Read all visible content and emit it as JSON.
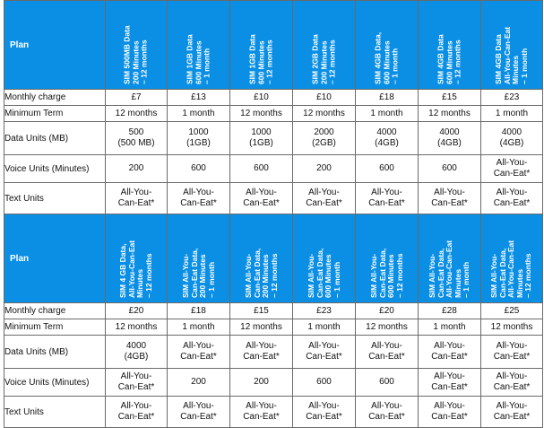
{
  "row_labels": {
    "plan": "Plan",
    "monthly": "Monthly charge",
    "term": "Minimum Term",
    "data": "Data Units (MB)",
    "voice": "Voice Units (Minutes)",
    "text": "Text Units"
  },
  "table1": {
    "plans": [
      "SIM 500MB Data\n200 Minutes\n– 12 months",
      "SIM 1GB Data\n600 Minutes\n– 1 month",
      "SIM 1GB Data\n600 Minutes\n– 12 months",
      "SIM 2GB Data\n200 Minutes\n– 12 months",
      "SIM 4GB Data,\n600 Minutes\n– 1 month",
      "SIM 4GB Data\n600 Minutes\n– 12 months",
      "SIM 4GB Data\nAll-You-Can-Eat\nMinutes\n– 1 month"
    ],
    "monthly": [
      "£7",
      "£13",
      "£10",
      "£10",
      "£18",
      "£15",
      "£23"
    ],
    "term": [
      "12 months",
      "1 month",
      "12 months",
      "12 months",
      "1 month",
      "12 months",
      "1 month"
    ],
    "data": [
      "500\n(500 MB)",
      "1000\n(1GB)",
      "1000\n(1GB)",
      "2000\n(2GB)",
      "4000\n(4GB)",
      "4000\n(4GB)",
      "4000\n(4GB)"
    ],
    "voice": [
      "200",
      "600",
      "600",
      "200",
      "600",
      "600",
      "All-You-\nCan-Eat*"
    ],
    "text": [
      "All-You-\nCan-Eat*",
      "All-You-\nCan-Eat*",
      "All-You-\nCan-Eat*",
      "All-You-\nCan-Eat*",
      "All-You-\nCan-Eat*",
      "All-You-\nCan-Eat*",
      "All-You-\nCan-Eat*"
    ]
  },
  "table2": {
    "plans": [
      "SIM 4 GB Data,\nAll-You-Can-Eat\nMinutes\n– 12 months",
      "SIM All-You-\nCan-Eat Data,\n200 Minutes\n– 1 month",
      "SIM All-You-\nCan-Eat Data,\n200 Minutes\n– 12 months",
      "SIM All-You-\nCan-Eat Data,\n600 Minutes\n– 1 month",
      "SIM All-You-\nCan-Eat Data,\n600 Minutes\n– 12 months",
      "SIM All-You-\nCan-Eat Data,\nAll-You-Can-Eat\nMinutes\n– 1 month",
      "SIM All-You-\nCan-Eat Data,\nAll-You-Can-Eat\nMinutes\n– 12 months"
    ],
    "monthly": [
      "£20",
      "£18",
      "£15",
      "£23",
      "£20",
      "£28",
      "£25"
    ],
    "term": [
      "12 months",
      "1 month",
      "12 months",
      "1 month",
      "12 months",
      "1 month",
      "12 months"
    ],
    "data": [
      "4000\n(4GB)",
      "All-You-\nCan-Eat*",
      "All-You-\nCan-Eat*",
      "All-You-\nCan-Eat*",
      "All-You-\nCan-Eat*",
      "All-You-\nCan-Eat*",
      "All-You-\nCan-Eat*"
    ],
    "voice": [
      "All-You-\nCan-Eat*",
      "200",
      "200",
      "600",
      "600",
      "All-You-\nCan-Eat*",
      "All-You-\nCan-Eat*"
    ],
    "text": [
      "All-You-\nCan-Eat*",
      "All-You-\nCan-Eat*",
      "All-You-\nCan-Eat*",
      "All-You-\nCan-Eat*",
      "All-You-\nCan-Eat*",
      "All-You-\nCan-Eat*",
      "All-You-\nCan-Eat*"
    ]
  },
  "colors": {
    "header_bg": "#0a8fe4",
    "header_text": "#ffffff",
    "border": "#6a6a6a"
  }
}
